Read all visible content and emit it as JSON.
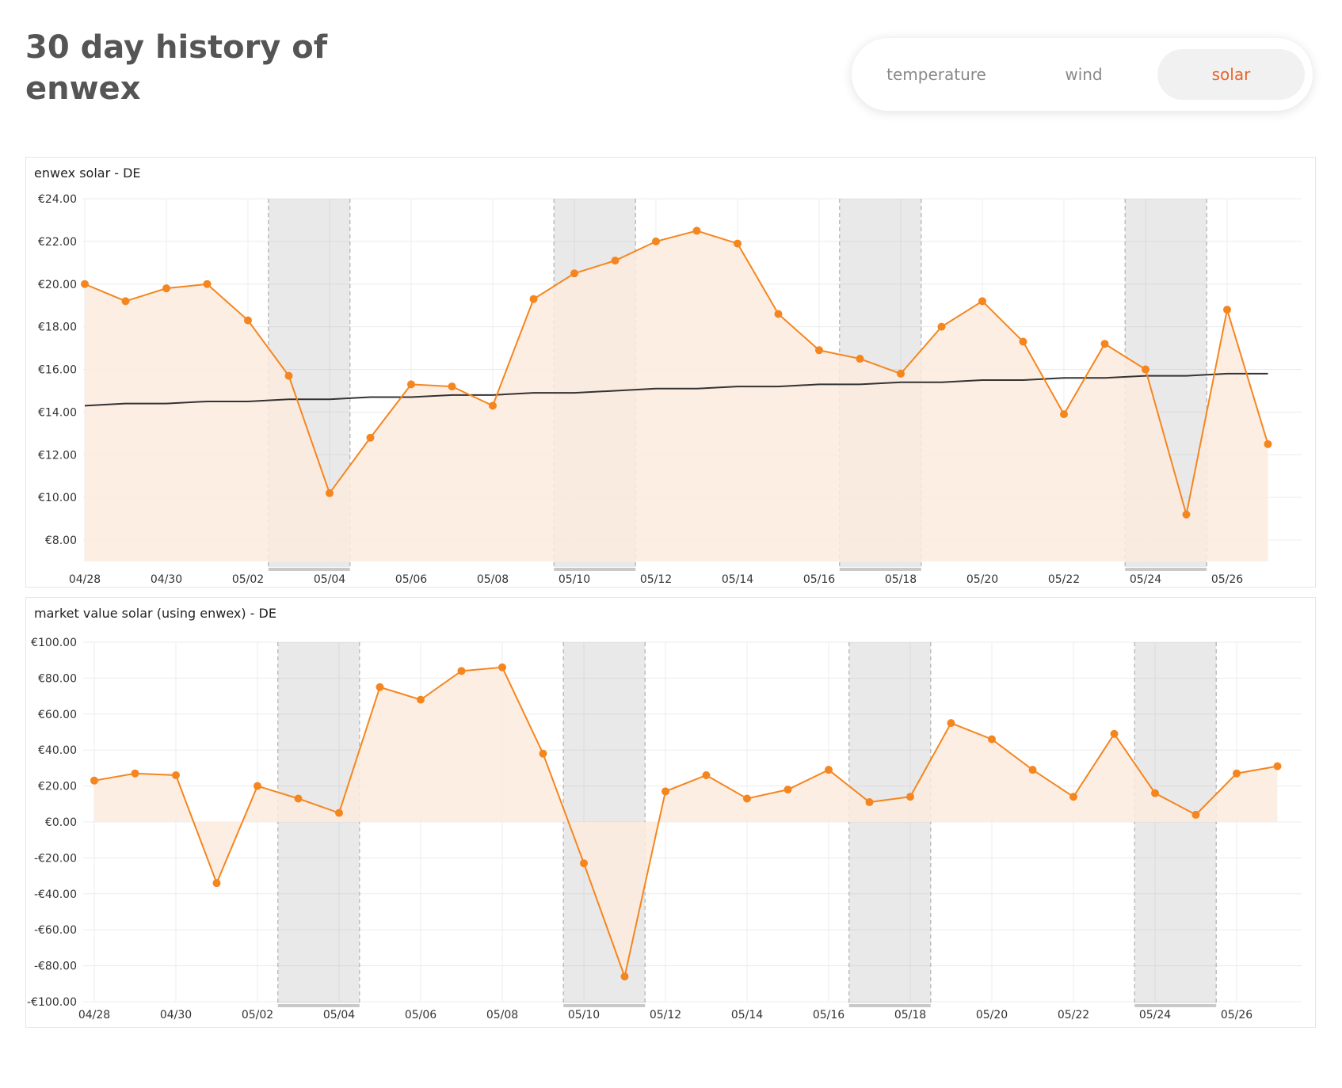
{
  "header": {
    "title": "30 day history of enwex"
  },
  "tabs": [
    {
      "label": "temperature",
      "active": false
    },
    {
      "label": "wind",
      "active": false
    },
    {
      "label": "solar",
      "active": true
    }
  ],
  "colors": {
    "accent": "#e8642b",
    "series": "#f5861f",
    "area": "#fdebdf",
    "trend": "#333333",
    "weekend": "#d8d8d8"
  },
  "chart_data": [
    {
      "type": "area",
      "title": "enwex solar - DE",
      "x": [
        "04/28",
        "04/29",
        "04/30",
        "05/01",
        "05/02",
        "05/03",
        "05/04",
        "05/05",
        "05/06",
        "05/07",
        "05/08",
        "05/09",
        "05/10",
        "05/11",
        "05/12",
        "05/13",
        "05/14",
        "05/15",
        "05/16",
        "05/17",
        "05/18",
        "05/19",
        "05/20",
        "05/21",
        "05/22",
        "05/23",
        "05/24",
        "05/25",
        "05/26",
        "05/27"
      ],
      "x_tick_labels": [
        "04/28",
        "04/30",
        "05/02",
        "05/04",
        "05/06",
        "05/08",
        "05/10",
        "05/12",
        "05/14",
        "05/16",
        "05/18",
        "05/20",
        "05/22",
        "05/24",
        "05/26"
      ],
      "series": [
        {
          "name": "enwex solar",
          "values": [
            20.0,
            19.2,
            19.8,
            20.0,
            18.3,
            15.7,
            10.2,
            12.8,
            15.3,
            15.2,
            14.3,
            19.3,
            20.5,
            21.1,
            22.0,
            22.5,
            21.9,
            18.6,
            16.9,
            16.5,
            15.8,
            18.0,
            19.2,
            17.3,
            13.9,
            17.2,
            16.0,
            9.2,
            18.8,
            12.5
          ]
        },
        {
          "name": "trend",
          "values": [
            14.3,
            14.4,
            14.4,
            14.5,
            14.5,
            14.6,
            14.6,
            14.7,
            14.7,
            14.8,
            14.8,
            14.9,
            14.9,
            15.0,
            15.1,
            15.1,
            15.2,
            15.2,
            15.3,
            15.3,
            15.4,
            15.4,
            15.5,
            15.5,
            15.6,
            15.6,
            15.7,
            15.7,
            15.8,
            15.8
          ]
        }
      ],
      "y_ticks": [
        "€8.00",
        "€10.00",
        "€12.00",
        "€14.00",
        "€16.00",
        "€18.00",
        "€20.00",
        "€22.00",
        "€24.00"
      ],
      "ylim": [
        7,
        24
      ],
      "weekends": [
        [
          "05/03",
          "05/04"
        ],
        [
          "05/10",
          "05/11"
        ],
        [
          "05/17",
          "05/18"
        ],
        [
          "05/24",
          "05/25"
        ]
      ]
    },
    {
      "type": "area",
      "title": "market value solar (using enwex) - DE",
      "x": [
        "04/28",
        "04/29",
        "04/30",
        "05/01",
        "05/02",
        "05/03",
        "05/04",
        "05/05",
        "05/06",
        "05/07",
        "05/08",
        "05/09",
        "05/10",
        "05/11",
        "05/12",
        "05/13",
        "05/14",
        "05/15",
        "05/16",
        "05/17",
        "05/18",
        "05/19",
        "05/20",
        "05/21",
        "05/22",
        "05/23",
        "05/24",
        "05/25",
        "05/26",
        "05/27"
      ],
      "x_tick_labels": [
        "04/28",
        "04/30",
        "05/02",
        "05/04",
        "05/06",
        "05/08",
        "05/10",
        "05/12",
        "05/14",
        "05/16",
        "05/18",
        "05/20",
        "05/22",
        "05/24",
        "05/26"
      ],
      "series": [
        {
          "name": "market value solar",
          "values": [
            23,
            27,
            26,
            -34,
            20,
            13,
            5,
            75,
            68,
            84,
            86,
            38,
            -23,
            -86,
            17,
            26,
            13,
            18,
            29,
            11,
            14,
            55,
            46,
            29,
            14,
            49,
            16,
            4,
            27,
            31
          ]
        }
      ],
      "y_ticks": [
        "-€100.00",
        "-€80.00",
        "-€60.00",
        "-€40.00",
        "-€20.00",
        "€0.00",
        "€20.00",
        "€40.00",
        "€60.00",
        "€80.00",
        "€100.00"
      ],
      "ylim": [
        -100,
        100
      ],
      "weekends": [
        [
          "05/03",
          "05/04"
        ],
        [
          "05/10",
          "05/11"
        ],
        [
          "05/17",
          "05/18"
        ],
        [
          "05/24",
          "05/25"
        ]
      ]
    }
  ]
}
